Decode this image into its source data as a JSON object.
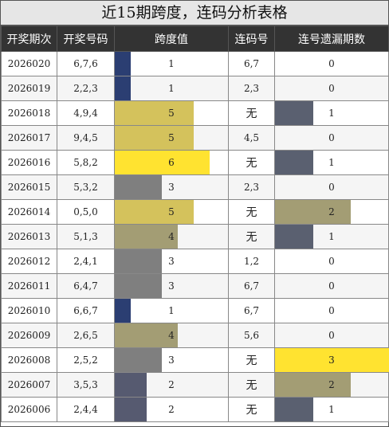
{
  "title": "近15期跨度，连码分析表格",
  "headers": [
    "开奖期次",
    "开奖号码",
    "跨度值",
    "连码号",
    "连号遗漏期数"
  ],
  "colors": {
    "span_1": "#2b3e72",
    "span_2": "#565a70",
    "span_3": "#7f7f7f",
    "span_4": "#a39d74",
    "span_5": "#d4c25c",
    "span_6": "#ffe330",
    "miss_1": "#5a6070",
    "miss_2": "#a39d74",
    "miss_3": "#ffe330"
  },
  "max_span": 9,
  "max_miss": 3,
  "rows": [
    {
      "issue": "2026020",
      "numbers": "6,7,6",
      "span": 1,
      "span_label": "1",
      "link": "6,7",
      "miss": 0,
      "miss_label": "0"
    },
    {
      "issue": "2026019",
      "numbers": "2,2,3",
      "span": 1,
      "span_label": "1",
      "link": "2,3",
      "miss": 0,
      "miss_label": "0"
    },
    {
      "issue": "2026018",
      "numbers": "4,9,4",
      "span": 5,
      "span_label": "5",
      "link": "无",
      "miss": 1,
      "miss_label": "1"
    },
    {
      "issue": "2026017",
      "numbers": "9,4,5",
      "span": 5,
      "span_label": "5",
      "link": "4,5",
      "miss": 0,
      "miss_label": "0"
    },
    {
      "issue": "2026016",
      "numbers": "5,8,2",
      "span": 6,
      "span_label": "6",
      "link": "无",
      "miss": 1,
      "miss_label": "1"
    },
    {
      "issue": "2026015",
      "numbers": "5,3,2",
      "span": 3,
      "span_label": "3",
      "link": "2,3",
      "miss": 0,
      "miss_label": "0"
    },
    {
      "issue": "2026014",
      "numbers": "0,5,0",
      "span": 5,
      "span_label": "5",
      "link": "无",
      "miss": 2,
      "miss_label": "2"
    },
    {
      "issue": "2026013",
      "numbers": "5,1,3",
      "span": 4,
      "span_label": "4",
      "link": "无",
      "miss": 1,
      "miss_label": "1"
    },
    {
      "issue": "2026012",
      "numbers": "2,4,1",
      "span": 3,
      "span_label": "3",
      "link": "1,2",
      "miss": 0,
      "miss_label": "0"
    },
    {
      "issue": "2026011",
      "numbers": "6,4,7",
      "span": 3,
      "span_label": "3",
      "link": "6,7",
      "miss": 0,
      "miss_label": "0"
    },
    {
      "issue": "2026010",
      "numbers": "6,6,7",
      "span": 1,
      "span_label": "1",
      "link": "6,7",
      "miss": 0,
      "miss_label": "0"
    },
    {
      "issue": "2026009",
      "numbers": "2,6,5",
      "span": 4,
      "span_label": "4",
      "link": "5,6",
      "miss": 0,
      "miss_label": "0"
    },
    {
      "issue": "2026008",
      "numbers": "2,5,2",
      "span": 3,
      "span_label": "3",
      "link": "无",
      "miss": 3,
      "miss_label": "3"
    },
    {
      "issue": "2026007",
      "numbers": "3,5,3",
      "span": 2,
      "span_label": "2",
      "link": "无",
      "miss": 2,
      "miss_label": "2"
    },
    {
      "issue": "2026006",
      "numbers": "2,4,4",
      "span": 2,
      "span_label": "2",
      "link": "无",
      "miss": 1,
      "miss_label": "1"
    }
  ]
}
